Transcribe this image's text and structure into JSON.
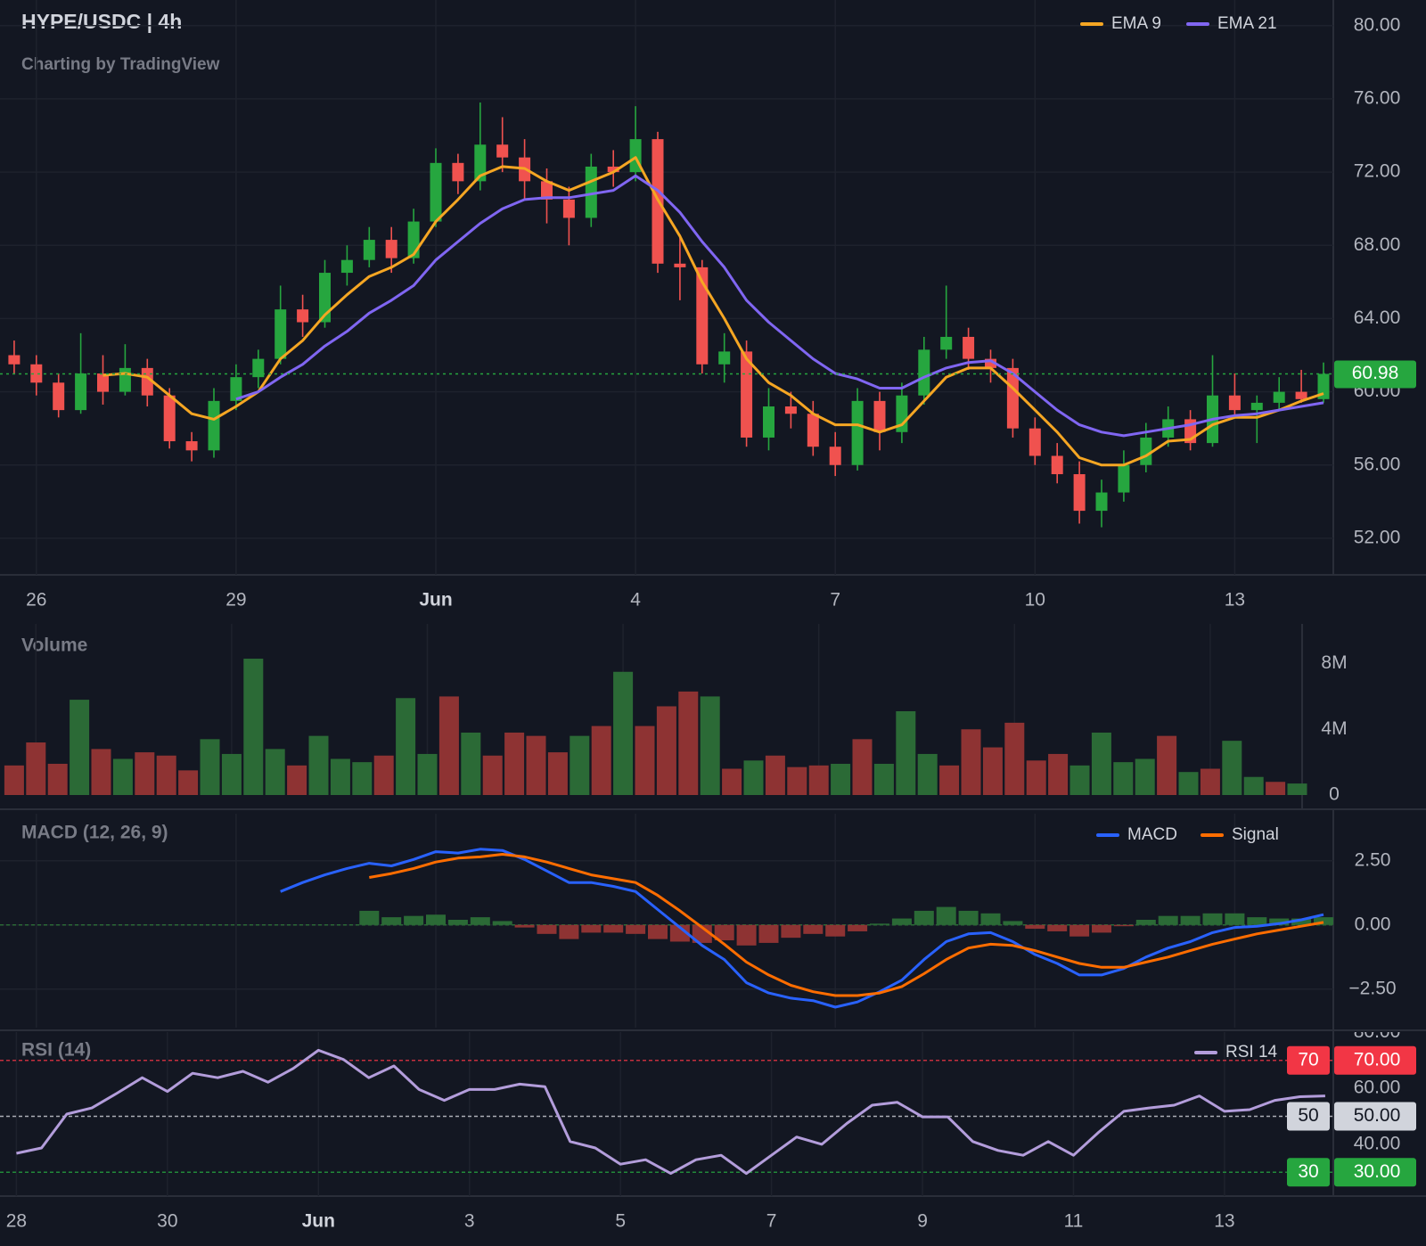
{
  "chart_data": [
    {
      "type": "candlestick",
      "title": "HYPE/USDC | 4h",
      "subtitle": "Charting by TradingView",
      "categories": [
        null,
        "26",
        null,
        null,
        null,
        null,
        null,
        null,
        null,
        null,
        "29",
        null,
        null,
        null,
        null,
        null,
        null,
        null,
        null,
        "Jun",
        null,
        null,
        null,
        null,
        null,
        null,
        null,
        null,
        "4",
        null,
        null,
        null,
        null,
        null,
        null,
        null,
        null,
        "7",
        null,
        null,
        null,
        null,
        null,
        null,
        null,
        null,
        "10",
        null,
        null,
        null,
        null,
        null,
        null,
        null,
        null,
        "13",
        null,
        null,
        null,
        null
      ],
      "open": [
        62.0,
        61.5,
        60.5,
        59.0,
        61.0,
        60.0,
        61.3,
        59.8,
        57.3,
        56.8,
        59.5,
        60.8,
        61.8,
        64.5,
        63.8,
        66.5,
        67.2,
        68.3,
        67.3,
        69.3,
        72.5,
        71.5,
        73.5,
        72.8,
        71.5,
        70.5,
        69.5,
        72.3,
        72.0,
        73.8,
        67.0,
        66.8,
        61.5,
        62.2,
        57.5,
        59.2,
        58.8,
        57.0,
        56.0,
        59.5,
        57.8,
        59.8,
        62.3,
        63.0,
        61.8,
        61.3,
        58.0,
        56.5,
        55.5,
        53.5,
        54.5,
        56.0,
        57.5,
        58.5,
        57.2,
        59.8,
        59.0,
        59.4,
        60.0,
        59.6
      ],
      "high": [
        62.8,
        62.0,
        61.0,
        63.2,
        62.0,
        62.6,
        61.8,
        60.2,
        57.8,
        60.2,
        61.5,
        62.3,
        65.8,
        65.3,
        67.2,
        68.0,
        69.0,
        69.0,
        70.0,
        73.3,
        73.0,
        75.8,
        75.0,
        73.8,
        72.2,
        71.2,
        73.0,
        73.2,
        75.6,
        74.2,
        68.6,
        67.2,
        63.2,
        62.8,
        60.2,
        60.0,
        59.5,
        57.8,
        60.2,
        60.0,
        60.5,
        63.0,
        65.8,
        63.5,
        62.3,
        61.8,
        58.6,
        57.2,
        56.2,
        55.2,
        56.8,
        58.3,
        59.2,
        59.0,
        62.0,
        61.0,
        59.8,
        60.8,
        61.2,
        61.6
      ],
      "low": [
        61.0,
        59.8,
        58.6,
        58.8,
        59.3,
        59.8,
        59.2,
        56.9,
        56.2,
        56.4,
        59.0,
        60.2,
        61.5,
        63.0,
        63.5,
        65.8,
        66.8,
        66.5,
        67.0,
        69.0,
        70.8,
        71.0,
        72.0,
        70.5,
        69.2,
        68.0,
        69.0,
        71.2,
        71.5,
        66.5,
        65.0,
        61.0,
        60.5,
        57.0,
        56.8,
        58.0,
        56.5,
        55.4,
        55.7,
        56.8,
        57.2,
        59.3,
        61.8,
        61.2,
        60.5,
        57.5,
        56.0,
        55.0,
        52.8,
        52.6,
        54.0,
        55.6,
        57.0,
        56.8,
        57.0,
        58.6,
        57.2,
        59.0,
        59.4,
        59.4
      ],
      "close": [
        61.5,
        60.5,
        59.0,
        61.0,
        60.0,
        61.3,
        59.8,
        57.3,
        56.8,
        59.5,
        60.8,
        61.8,
        64.5,
        63.8,
        66.5,
        67.2,
        68.3,
        67.3,
        69.3,
        72.5,
        71.5,
        73.5,
        72.8,
        71.5,
        70.5,
        69.5,
        72.3,
        72.0,
        73.8,
        67.0,
        66.8,
        61.5,
        62.2,
        57.5,
        59.2,
        58.8,
        57.0,
        56.0,
        59.5,
        57.8,
        59.8,
        62.3,
        63.0,
        61.8,
        61.3,
        58.0,
        56.5,
        55.5,
        53.5,
        54.5,
        56.0,
        57.5,
        58.5,
        57.2,
        59.8,
        59.0,
        59.4,
        60.0,
        59.6,
        60.98
      ],
      "up_color": "#26a63f",
      "down_color": "#f0524f",
      "last_price_color": "#26a63f",
      "series": [
        {
          "name": "EMA 9",
          "color": "#f5a623",
          "values": [
            null,
            null,
            null,
            null,
            60.9,
            61.0,
            60.8,
            59.8,
            58.8,
            58.5,
            59.2,
            60.0,
            61.8,
            62.8,
            64.2,
            65.3,
            66.3,
            66.8,
            67.5,
            69.3,
            70.5,
            71.8,
            72.3,
            72.2,
            71.5,
            71.0,
            71.5,
            72.0,
            72.8,
            70.5,
            68.5,
            66.0,
            64.0,
            61.8,
            60.5,
            59.8,
            58.8,
            58.2,
            58.2,
            57.8,
            58.2,
            59.5,
            60.8,
            61.3,
            61.3,
            60.2,
            59.0,
            57.8,
            56.4,
            56.0,
            56.0,
            56.5,
            57.3,
            57.4,
            58.2,
            58.6,
            58.6,
            59.0,
            59.5,
            59.9
          ]
        },
        {
          "name": "EMA 21",
          "color": "#8066f2",
          "values": [
            null,
            null,
            null,
            null,
            null,
            null,
            null,
            null,
            null,
            null,
            59.6,
            60.0,
            60.8,
            61.5,
            62.5,
            63.3,
            64.3,
            65.0,
            65.8,
            67.2,
            68.2,
            69.2,
            70.0,
            70.5,
            70.6,
            70.6,
            70.8,
            71.0,
            71.8,
            71.0,
            69.8,
            68.2,
            66.8,
            65.0,
            63.8,
            62.8,
            61.8,
            61.0,
            60.7,
            60.2,
            60.2,
            60.8,
            61.3,
            61.6,
            61.7,
            61.0,
            60.0,
            59.0,
            58.2,
            57.8,
            57.6,
            57.8,
            58.0,
            58.2,
            58.5,
            58.7,
            58.8,
            59.0,
            59.2,
            59.4
          ]
        }
      ],
      "ylim": [
        50,
        81.4
      ],
      "yticks": [
        {
          "value": 52,
          "label": "52.00"
        },
        {
          "value": 56,
          "label": "56.00"
        },
        {
          "value": 60,
          "label": "60.00"
        },
        {
          "value": 64,
          "label": "64.00"
        },
        {
          "value": 68,
          "label": "68.00"
        },
        {
          "value": 72,
          "label": "72.00"
        },
        {
          "value": 76,
          "label": "76.00"
        },
        {
          "value": 80,
          "label": "80.00"
        }
      ],
      "grid": true
    },
    {
      "type": "bar",
      "title": "Volume",
      "up_color": "#2b6a36",
      "down_color": "#8e3333",
      "values": [
        1800000.0,
        3200000.0,
        1900000.0,
        5800000.0,
        2800000.0,
        2200000.0,
        2600000.0,
        2400000.0,
        1500000.0,
        3400000.0,
        2500000.0,
        8300000.0,
        2800000.0,
        1800000.0,
        3600000.0,
        2200000.0,
        2000000.0,
        2400000.0,
        5900000.0,
        2500000.0,
        6000000.0,
        3800000.0,
        2400000.0,
        3800000.0,
        3600000.0,
        2600000.0,
        3600000.0,
        4200000.0,
        7500000.0,
        4200000.0,
        5400000.0,
        6300000.0,
        6000000.0,
        1600000.0,
        2100000.0,
        2400000.0,
        1700000.0,
        1800000.0,
        1900000.0,
        3400000.0,
        1900000.0,
        5100000.0,
        2500000.0,
        1800000.0,
        4000000.0,
        2900000.0,
        4400000.0,
        2100000.0,
        2500000.0,
        1800000.0,
        3800000.0,
        2000000.0,
        2200000.0,
        3600000.0,
        1400000.0,
        1600000.0,
        3300000.0,
        1100000.0,
        800000.0,
        700000.0
      ],
      "ylim": [
        0,
        10200000.0
      ],
      "yticks": [
        0,
        {
          "value": 4000000.0,
          "label": "4M"
        },
        {
          "value": 8000000.0,
          "label": "8M"
        }
      ],
      "grid": true
    },
    {
      "type": "macd",
      "title": "MACD (12, 26, 9)",
      "up_color": "#2b6a36",
      "down_color": "#8e3333",
      "series": [
        {
          "name": "MACD",
          "color": "#2962ff",
          "values": [
            null,
            null,
            null,
            null,
            null,
            null,
            null,
            null,
            null,
            null,
            null,
            null,
            1.3,
            1.65,
            1.95,
            2.2,
            2.4,
            2.3,
            2.55,
            2.85,
            2.8,
            2.95,
            2.9,
            2.55,
            2.1,
            1.65,
            1.65,
            1.5,
            1.3,
            0.6,
            -0.1,
            -0.8,
            -1.35,
            -2.25,
            -2.65,
            -2.85,
            -2.95,
            -3.2,
            -3.0,
            -2.6,
            -2.15,
            -1.35,
            -0.65,
            -0.35,
            -0.3,
            -0.65,
            -1.15,
            -1.5,
            -1.95,
            -1.95,
            -1.7,
            -1.25,
            -0.9,
            -0.65,
            -0.3,
            -0.1,
            -0.05,
            0.05,
            0.2,
            0.4
          ]
        },
        {
          "name": "Signal",
          "color": "#ff6d00",
          "values": [
            null,
            null,
            null,
            null,
            null,
            null,
            null,
            null,
            null,
            null,
            null,
            null,
            null,
            null,
            null,
            null,
            1.85,
            2.0,
            2.2,
            2.45,
            2.6,
            2.65,
            2.75,
            2.65,
            2.45,
            2.2,
            1.95,
            1.8,
            1.65,
            1.15,
            0.55,
            -0.1,
            -0.75,
            -1.45,
            -1.95,
            -2.35,
            -2.6,
            -2.75,
            -2.75,
            -2.65,
            -2.4,
            -1.9,
            -1.35,
            -0.9,
            -0.75,
            -0.8,
            -1.0,
            -1.25,
            -1.5,
            -1.65,
            -1.65,
            -1.45,
            -1.25,
            -1.0,
            -0.75,
            -0.55,
            -0.35,
            -0.2,
            -0.05,
            0.1
          ]
        }
      ],
      "histogram": [
        null,
        null,
        null,
        null,
        null,
        null,
        null,
        null,
        null,
        null,
        null,
        null,
        null,
        null,
        null,
        null,
        0.55,
        0.3,
        0.35,
        0.4,
        0.2,
        0.3,
        0.15,
        -0.1,
        -0.35,
        -0.55,
        -0.3,
        -0.3,
        -0.35,
        -0.55,
        -0.65,
        -0.7,
        -0.6,
        -0.8,
        -0.7,
        -0.5,
        -0.35,
        -0.45,
        -0.25,
        0.05,
        0.25,
        0.55,
        0.7,
        0.55,
        0.45,
        0.15,
        -0.15,
        -0.25,
        -0.45,
        -0.3,
        -0.05,
        0.2,
        0.35,
        0.35,
        0.45,
        0.45,
        0.3,
        0.25,
        0.25,
        0.3
      ],
      "ylim": [
        -4.0,
        4.33
      ],
      "yticks": [
        {
          "value": -2.5,
          "label": "−2.50"
        },
        {
          "value": 0,
          "label": "0.00"
        },
        {
          "value": 2.5,
          "label": "2.50"
        }
      ],
      "grid": true
    },
    {
      "type": "line",
      "title": "RSI (14)",
      "categories": [
        "28",
        null,
        null,
        null,
        null,
        null,
        "30",
        null,
        null,
        null,
        null,
        null,
        "Jun",
        null,
        null,
        null,
        null,
        null,
        "3",
        null,
        null,
        null,
        null,
        null,
        "5",
        null,
        null,
        null,
        null,
        null,
        "7",
        null,
        null,
        null,
        null,
        null,
        "9",
        null,
        null,
        null,
        null,
        null,
        "11",
        null,
        null,
        null,
        null,
        null,
        "13",
        null,
        null,
        null,
        null
      ],
      "series": [
        {
          "name": "RSI 14",
          "color": "#b39ddb",
          "values": [
            36.8,
            38.7,
            50.8,
            53,
            58.3,
            63.8,
            58.9,
            65.4,
            63.8,
            66.1,
            62.2,
            67.1,
            73.6,
            70.3,
            63.8,
            68,
            59.6,
            55.7,
            59.6,
            59.6,
            61.5,
            60.6,
            41,
            38.7,
            32.9,
            34.5,
            29.6,
            34.5,
            36.1,
            29.6,
            36.1,
            42.6,
            40,
            47.5,
            54,
            55,
            49.8,
            49.8,
            41,
            37.8,
            36.1,
            41,
            36.1,
            44.3,
            51.8,
            53,
            54,
            57.3,
            51.8,
            52.4,
            55.7,
            57,
            57.3
          ]
        }
      ],
      "levels": [
        {
          "value": 70,
          "color": "#f23645",
          "label_color": "#ffffff"
        },
        {
          "value": 50,
          "color": "#d1d4dc",
          "label_color": "#131722"
        },
        {
          "value": 30,
          "color": "#26a63f",
          "label_color": "#ffffff"
        }
      ],
      "ylim": [
        21.5,
        80.1
      ],
      "yticks": [
        {
          "value": 30,
          "label": "30.00"
        },
        {
          "value": 40,
          "label": "40.00"
        },
        {
          "value": 50,
          "label": "50.00"
        },
        {
          "value": 60,
          "label": "60.00"
        },
        {
          "value": 70,
          "label": "70.00"
        },
        {
          "value": 80,
          "label": "80.00"
        }
      ],
      "grid": true
    }
  ]
}
